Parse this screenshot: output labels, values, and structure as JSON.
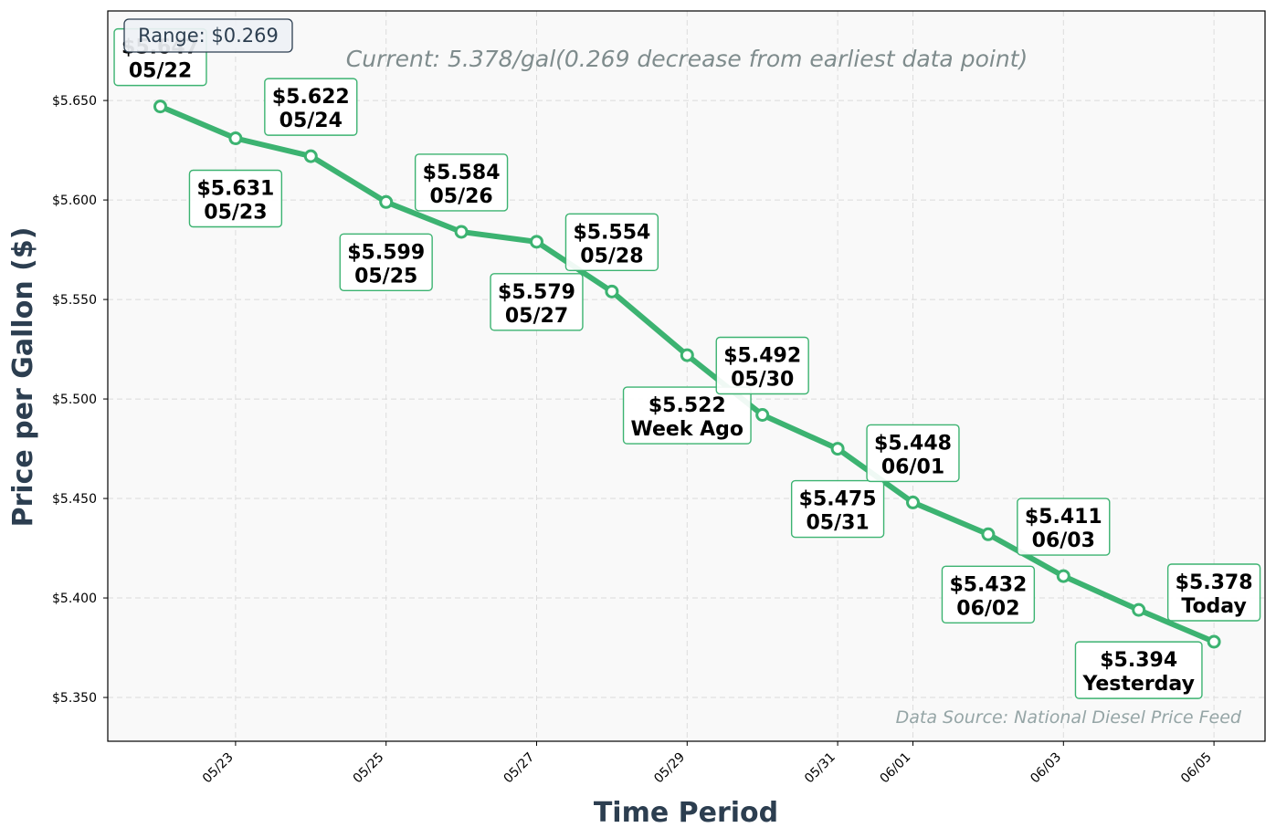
{
  "chart_data": {
    "type": "line",
    "xlabel": "Time Period",
    "ylabel": "Price per Gallon ($)",
    "ylim": [
      5.328,
      5.695
    ],
    "y_ticks": [
      5.35,
      5.4,
      5.45,
      5.5,
      5.55,
      5.6,
      5.65
    ],
    "y_tick_labels": [
      "$5.350",
      "$5.400",
      "$5.450",
      "$5.500",
      "$5.550",
      "$5.600",
      "$5.650"
    ],
    "x_tick_labels": [
      "05/23",
      "05/25",
      "05/27",
      "05/29",
      "05/31",
      "06/01",
      "06/03",
      "06/05"
    ],
    "x_tick_days": [
      1,
      3,
      5,
      7,
      9,
      10,
      12,
      14
    ],
    "grid": true,
    "line_color": "#3cb371",
    "series": [
      {
        "x": [
          "05/22",
          "05/23",
          "05/24",
          "05/25",
          "05/26",
          "05/27",
          "05/28",
          "05/29",
          "05/30",
          "05/31",
          "06/01",
          "06/02",
          "06/03",
          "06/04",
          "06/05"
        ],
        "values": [
          5.647,
          5.631,
          5.622,
          5.599,
          5.584,
          5.579,
          5.554,
          5.522,
          5.492,
          5.475,
          5.448,
          5.432,
          5.411,
          5.394,
          5.378
        ]
      }
    ],
    "point_labels": [
      {
        "price": "$5.647",
        "date": "05/22",
        "pos": "above"
      },
      {
        "price": "$5.631",
        "date": "05/23",
        "pos": "below"
      },
      {
        "price": "$5.622",
        "date": "05/24",
        "pos": "above"
      },
      {
        "price": "$5.599",
        "date": "05/25",
        "pos": "below"
      },
      {
        "price": "$5.584",
        "date": "05/26",
        "pos": "above"
      },
      {
        "price": "$5.579",
        "date": "05/27",
        "pos": "below"
      },
      {
        "price": "$5.554",
        "date": "05/28",
        "pos": "above"
      },
      {
        "price": "$5.522",
        "date": "Week Ago",
        "pos": "below"
      },
      {
        "price": "$5.492",
        "date": "05/30",
        "pos": "above"
      },
      {
        "price": "$5.475",
        "date": "05/31",
        "pos": "below"
      },
      {
        "price": "$5.448",
        "date": "06/01",
        "pos": "above"
      },
      {
        "price": "$5.432",
        "date": "06/02",
        "pos": "below"
      },
      {
        "price": "$5.411",
        "date": "06/03",
        "pos": "above"
      },
      {
        "price": "$5.394",
        "date": "Yesterday",
        "pos": "below"
      },
      {
        "price": "$5.378",
        "date": "Today",
        "pos": "above"
      }
    ],
    "annotations": {
      "range": "Range: $0.269",
      "current": "Current: 5.378/gal(0.269 decrease from earliest data point)",
      "source": "Data Source: National Diesel Price Feed"
    }
  }
}
